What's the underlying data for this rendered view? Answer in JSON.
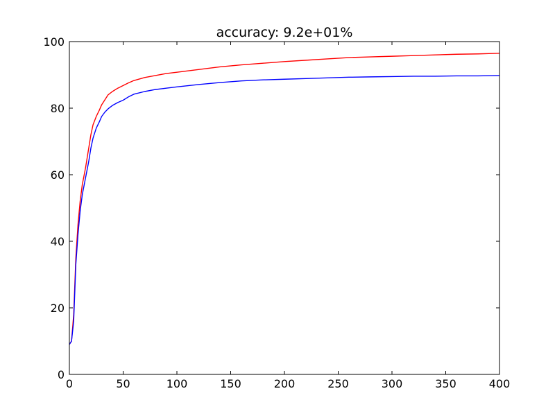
{
  "chart_data": {
    "type": "line",
    "title": "accuracy: 9.2e+01%",
    "xlabel": "",
    "ylabel": "",
    "xlim": [
      0,
      400
    ],
    "ylim": [
      0,
      100
    ],
    "xticks": [
      0,
      50,
      100,
      150,
      200,
      250,
      300,
      350,
      400
    ],
    "yticks": [
      0,
      20,
      40,
      60,
      80,
      100
    ],
    "grid": false,
    "legend": "none",
    "series": [
      {
        "color": "#ff0000",
        "x": [
          0,
          2,
          4,
          6,
          8,
          10,
          12,
          15,
          18,
          20,
          22,
          25,
          28,
          30,
          33,
          36,
          40,
          45,
          50,
          55,
          60,
          70,
          80,
          90,
          100,
          120,
          140,
          160,
          180,
          200,
          220,
          240,
          260,
          280,
          300,
          320,
          340,
          360,
          380,
          400
        ],
        "y": [
          9,
          10,
          18,
          35,
          45,
          52,
          57,
          62,
          68,
          72,
          75,
          77.5,
          79.5,
          81,
          82.5,
          84,
          85,
          86,
          86.8,
          87.6,
          88.3,
          89.2,
          89.8,
          90.4,
          90.8,
          91.6,
          92.4,
          93.0,
          93.5,
          94.0,
          94.4,
          94.8,
          95.2,
          95.4,
          95.6,
          95.8,
          96.0,
          96.2,
          96.3,
          96.5
        ]
      },
      {
        "color": "#0000ff",
        "x": [
          0,
          2,
          4,
          6,
          8,
          10,
          12,
          15,
          18,
          20,
          22,
          25,
          28,
          30,
          33,
          36,
          40,
          45,
          50,
          55,
          60,
          70,
          80,
          90,
          100,
          120,
          140,
          160,
          180,
          200,
          220,
          240,
          260,
          280,
          300,
          320,
          340,
          360,
          380,
          400
        ],
        "y": [
          9,
          10,
          16,
          33,
          42,
          49,
          54,
          59,
          64,
          68,
          71,
          74,
          76,
          77.5,
          78.8,
          79.8,
          80.8,
          81.7,
          82.4,
          83.4,
          84.2,
          85.0,
          85.6,
          86.0,
          86.4,
          87.1,
          87.7,
          88.2,
          88.5,
          88.7,
          88.9,
          89.1,
          89.3,
          89.4,
          89.5,
          89.6,
          89.6,
          89.7,
          89.7,
          89.8
        ]
      }
    ]
  }
}
